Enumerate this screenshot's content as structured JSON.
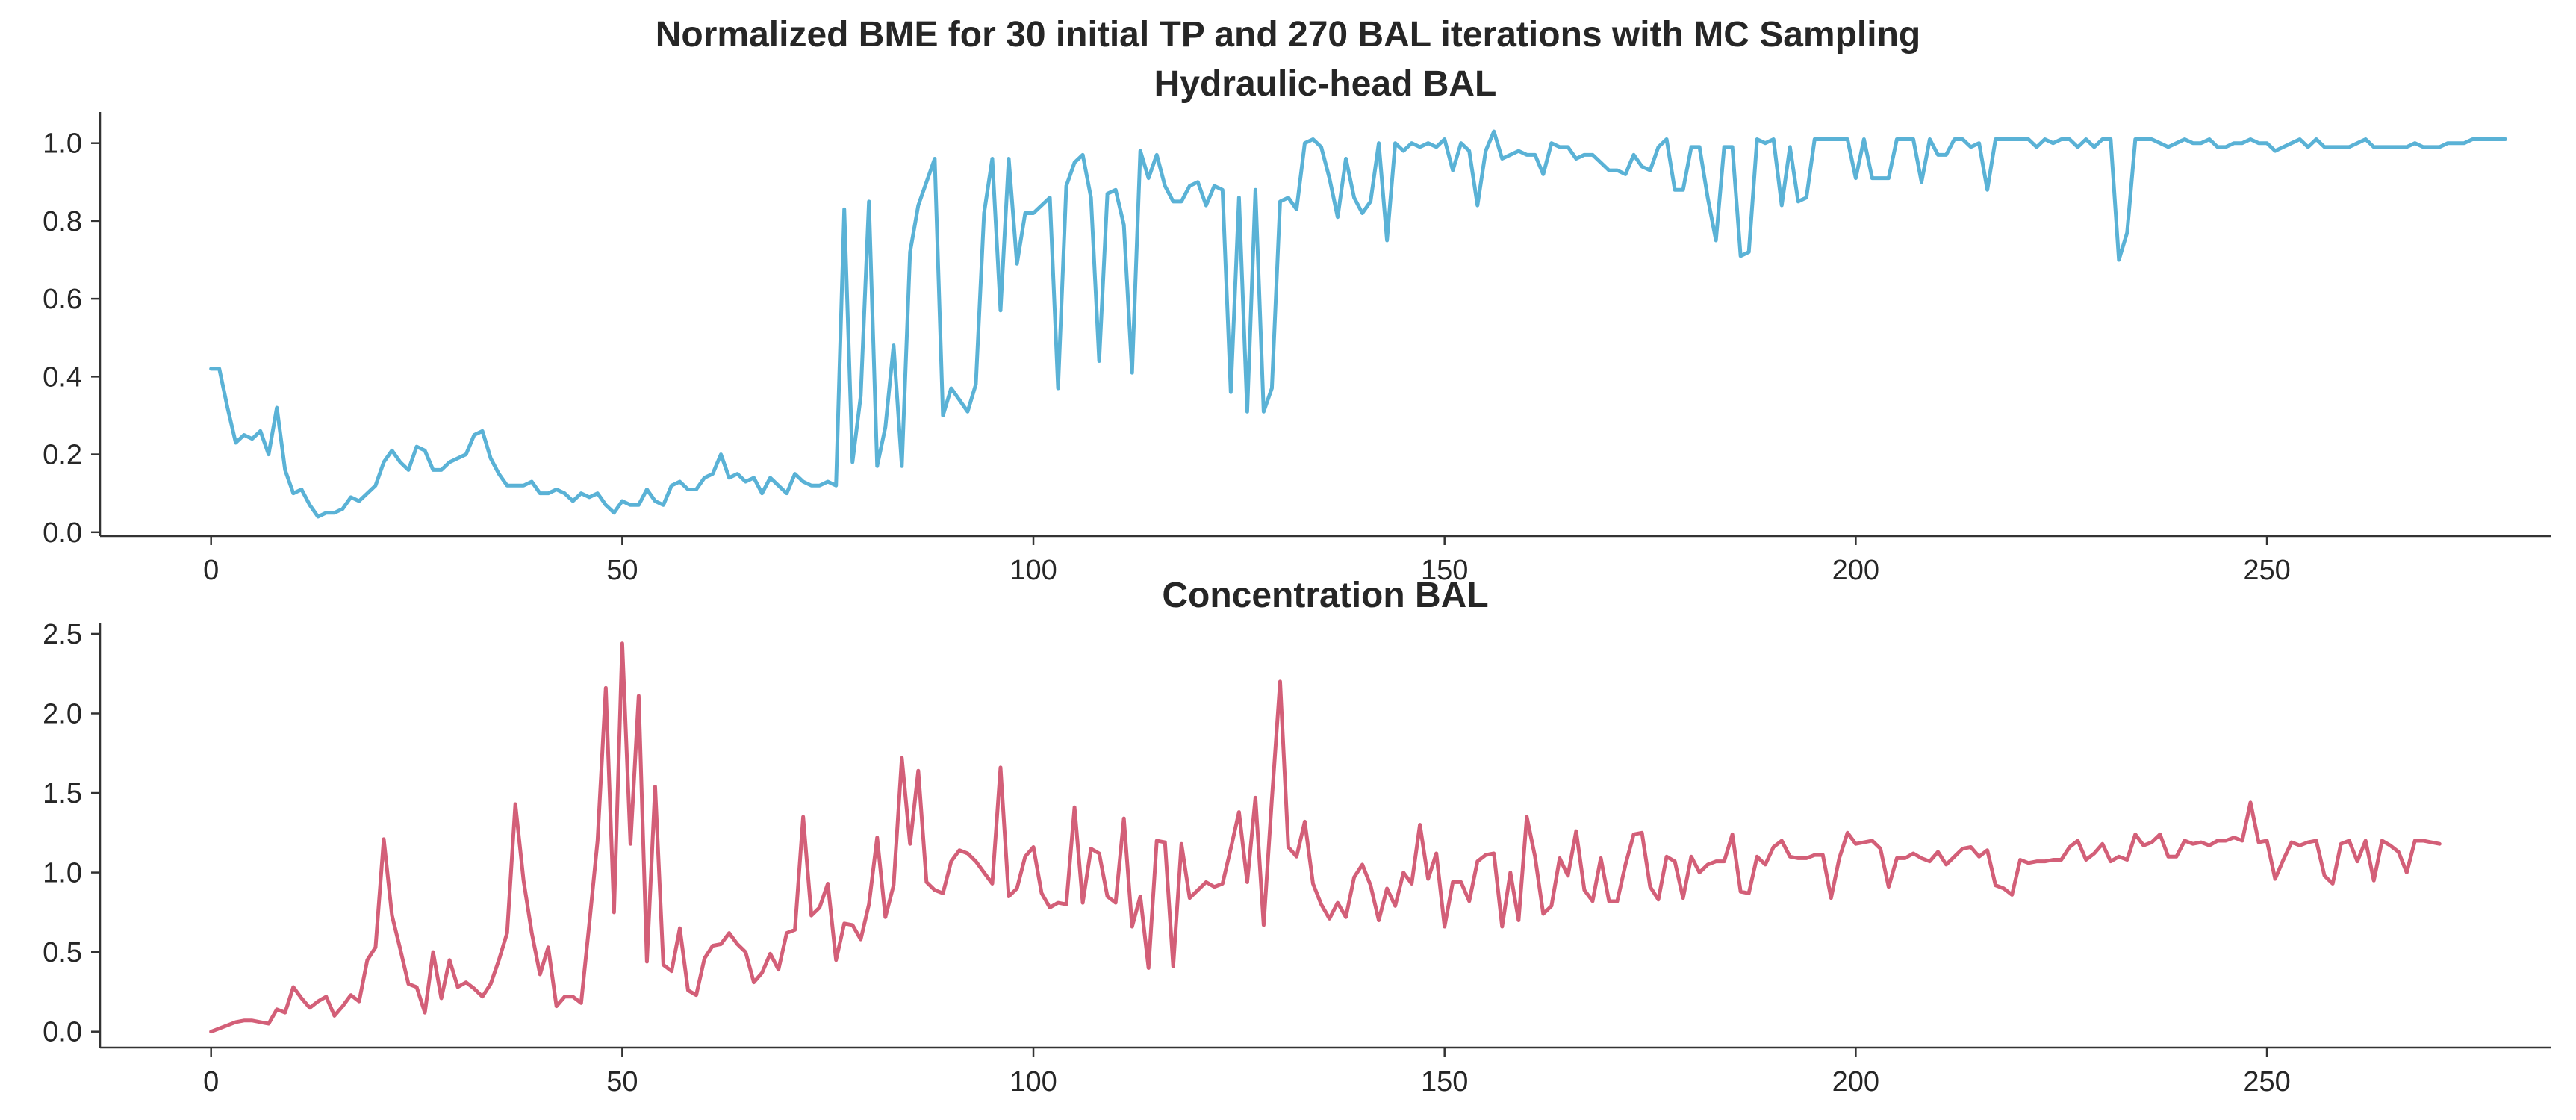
{
  "figure": {
    "suptitle": "Normalized BME for 30 initial TP and 270 BAL iterations with MC Sampling"
  },
  "chart_data": [
    {
      "type": "line",
      "title": "Hydraulic-head BAL",
      "xlabel": "",
      "ylabel": "",
      "xlim": [
        -13.5,
        284.5
      ],
      "ylim": [
        -0.01,
        1.08
      ],
      "xticks": [
        0,
        50,
        100,
        150,
        200,
        250
      ],
      "yticks": [
        0.0,
        0.2,
        0.4,
        0.6,
        0.8,
        1.0
      ],
      "ytick_format": 1,
      "grid": false,
      "color": "#5ab2d6",
      "x_start": 0,
      "values": [
        0.42,
        0.42,
        0.32,
        0.23,
        0.25,
        0.24,
        0.26,
        0.2,
        0.32,
        0.16,
        0.1,
        0.11,
        0.07,
        0.04,
        0.05,
        0.05,
        0.06,
        0.09,
        0.08,
        0.1,
        0.12,
        0.18,
        0.21,
        0.18,
        0.16,
        0.22,
        0.21,
        0.16,
        0.16,
        0.18,
        0.19,
        0.2,
        0.25,
        0.26,
        0.19,
        0.15,
        0.12,
        0.12,
        0.12,
        0.13,
        0.1,
        0.1,
        0.11,
        0.1,
        0.08,
        0.1,
        0.09,
        0.1,
        0.07,
        0.05,
        0.08,
        0.07,
        0.07,
        0.11,
        0.08,
        0.07,
        0.12,
        0.13,
        0.11,
        0.11,
        0.14,
        0.15,
        0.2,
        0.14,
        0.15,
        0.13,
        0.14,
        0.1,
        0.14,
        0.12,
        0.1,
        0.15,
        0.13,
        0.12,
        0.12,
        0.13,
        0.12,
        0.83,
        0.18,
        0.35,
        0.85,
        0.17,
        0.27,
        0.48,
        0.17,
        0.72,
        0.84,
        0.9,
        0.96,
        0.3,
        0.37,
        0.34,
        0.31,
        0.38,
        0.82,
        0.96,
        0.57,
        0.96,
        0.69,
        0.82,
        0.82,
        0.84,
        0.86,
        0.37,
        0.89,
        0.95,
        0.97,
        0.86,
        0.44,
        0.87,
        0.88,
        0.79,
        0.41,
        0.98,
        0.91,
        0.97,
        0.89,
        0.85,
        0.85,
        0.89,
        0.9,
        0.84,
        0.89,
        0.88,
        0.36,
        0.86,
        0.31,
        0.88,
        0.31,
        0.37,
        0.85,
        0.86,
        0.83,
        1.0,
        1.01,
        0.99,
        0.91,
        0.81,
        0.96,
        0.86,
        0.82,
        0.85,
        1.0,
        0.75,
        1.0,
        0.98,
        1.0,
        0.99,
        1.0,
        0.99,
        1.01,
        0.93,
        1.0,
        0.98,
        0.84,
        0.98,
        1.03,
        0.96,
        0.97,
        0.98,
        0.97,
        0.97,
        0.92,
        1.0,
        0.99,
        0.99,
        0.96,
        0.97,
        0.97,
        0.95,
        0.93,
        0.93,
        0.92,
        0.97,
        0.94,
        0.93,
        0.99,
        1.01,
        0.88,
        0.88,
        0.99,
        0.99,
        0.86,
        0.75,
        0.99,
        0.99,
        0.71,
        0.72,
        1.01,
        1.0,
        1.01,
        0.84,
        0.99,
        0.85,
        0.86,
        1.01,
        1.01,
        1.01,
        1.01,
        1.01,
        0.91,
        1.01,
        0.91,
        0.91,
        0.91,
        1.01,
        1.01,
        1.01,
        0.9,
        1.01,
        0.97,
        0.97,
        1.01,
        1.01,
        0.99,
        1.0,
        0.88,
        1.01,
        1.01,
        1.01,
        1.01,
        1.01,
        0.99,
        1.01,
        1.0,
        1.01,
        1.01,
        0.99,
        1.01,
        0.99,
        1.01,
        1.01,
        0.7,
        0.77,
        1.01,
        1.01,
        1.01,
        1.0,
        0.99,
        1.0,
        1.01,
        1.0,
        1.0,
        1.01,
        0.99,
        0.99,
        1.0,
        1.0,
        1.01,
        1.0,
        1.0,
        0.98,
        0.99,
        1.0,
        1.01,
        0.99,
        1.01,
        0.99,
        0.99,
        0.99,
        0.99,
        1.0,
        1.01,
        0.99,
        0.99,
        0.99,
        0.99,
        0.99,
        1.0,
        0.99,
        0.99,
        0.99,
        1.0,
        1.0,
        1.0,
        1.01,
        1.01,
        1.01,
        1.01,
        1.01
      ]
    },
    {
      "type": "line",
      "title": "Concentration BAL",
      "xlabel": "",
      "ylabel": "",
      "xlim": [
        -13.5,
        284.5
      ],
      "ylim": [
        -0.1,
        2.57
      ],
      "xticks": [
        0,
        50,
        100,
        150,
        200,
        250
      ],
      "yticks": [
        0.0,
        0.5,
        1.0,
        1.5,
        2.0,
        2.5
      ],
      "ytick_format": 1,
      "grid": false,
      "color": "#d35f78",
      "x_start": 0,
      "values": [
        0.0,
        0.02,
        0.04,
        0.06,
        0.07,
        0.07,
        0.06,
        0.05,
        0.14,
        0.12,
        0.28,
        0.21,
        0.15,
        0.19,
        0.22,
        0.1,
        0.16,
        0.23,
        0.19,
        0.45,
        0.53,
        1.21,
        0.73,
        0.52,
        0.3,
        0.28,
        0.12,
        0.5,
        0.21,
        0.45,
        0.28,
        0.31,
        0.27,
        0.22,
        0.3,
        0.45,
        0.62,
        1.43,
        0.95,
        0.62,
        0.36,
        0.53,
        0.16,
        0.22,
        0.22,
        0.18,
        0.68,
        1.2,
        2.16,
        0.75,
        2.44,
        1.18,
        2.11,
        0.44,
        1.54,
        0.42,
        0.38,
        0.65,
        0.26,
        0.23,
        0.46,
        0.54,
        0.55,
        0.62,
        0.55,
        0.5,
        0.31,
        0.37,
        0.49,
        0.39,
        0.62,
        0.64,
        1.35,
        0.73,
        0.78,
        0.93,
        0.45,
        0.68,
        0.67,
        0.58,
        0.8,
        1.22,
        0.72,
        0.92,
        1.72,
        1.18,
        1.64,
        0.94,
        0.89,
        0.87,
        1.07,
        1.14,
        1.12,
        1.07,
        1.0,
        0.93,
        1.66,
        0.85,
        0.9,
        1.1,
        1.16,
        0.87,
        0.78,
        0.81,
        0.8,
        1.41,
        0.81,
        1.15,
        1.12,
        0.85,
        0.81,
        1.34,
        0.66,
        0.85,
        0.4,
        1.2,
        1.19,
        0.41,
        1.18,
        0.84,
        0.89,
        0.94,
        0.91,
        0.93,
        1.15,
        1.38,
        0.94,
        1.47,
        0.67,
        1.46,
        2.2,
        1.16,
        1.1,
        1.32,
        0.93,
        0.8,
        0.71,
        0.81,
        0.72,
        0.97,
        1.05,
        0.92,
        0.7,
        0.9,
        0.79,
        1.0,
        0.93,
        1.3,
        0.96,
        1.12,
        0.66,
        0.94,
        0.94,
        0.82,
        1.07,
        1.11,
        1.12,
        0.66,
        1.0,
        0.7,
        1.35,
        1.1,
        0.74,
        0.79,
        1.09,
        0.98,
        1.26,
        0.89,
        0.82,
        1.09,
        0.82,
        0.82,
        1.05,
        1.24,
        1.25,
        0.91,
        0.83,
        1.1,
        1.07,
        0.84,
        1.1,
        1.0,
        1.05,
        1.07,
        1.07,
        1.24,
        0.88,
        0.87,
        1.1,
        1.05,
        1.16,
        1.2,
        1.1,
        1.09,
        1.09,
        1.11,
        1.11,
        0.84,
        1.09,
        1.25,
        1.18,
        1.19,
        1.2,
        1.15,
        0.91,
        1.09,
        1.09,
        1.12,
        1.09,
        1.07,
        1.13,
        1.05,
        1.1,
        1.15,
        1.16,
        1.1,
        1.14,
        0.92,
        0.9,
        0.86,
        1.08,
        1.06,
        1.07,
        1.07,
        1.08,
        1.08,
        1.16,
        1.2,
        1.08,
        1.12,
        1.18,
        1.07,
        1.1,
        1.08,
        1.24,
        1.17,
        1.19,
        1.24,
        1.1,
        1.1,
        1.2,
        1.18,
        1.19,
        1.17,
        1.2,
        1.2,
        1.22,
        1.2,
        1.44,
        1.19,
        1.2,
        0.96,
        1.08,
        1.19,
        1.17,
        1.19,
        1.2,
        0.98,
        0.93,
        1.18,
        1.2,
        1.07,
        1.2,
        0.95,
        1.2,
        1.17,
        1.13,
        1.0,
        1.2,
        1.2,
        1.19,
        1.18
      ]
    }
  ]
}
